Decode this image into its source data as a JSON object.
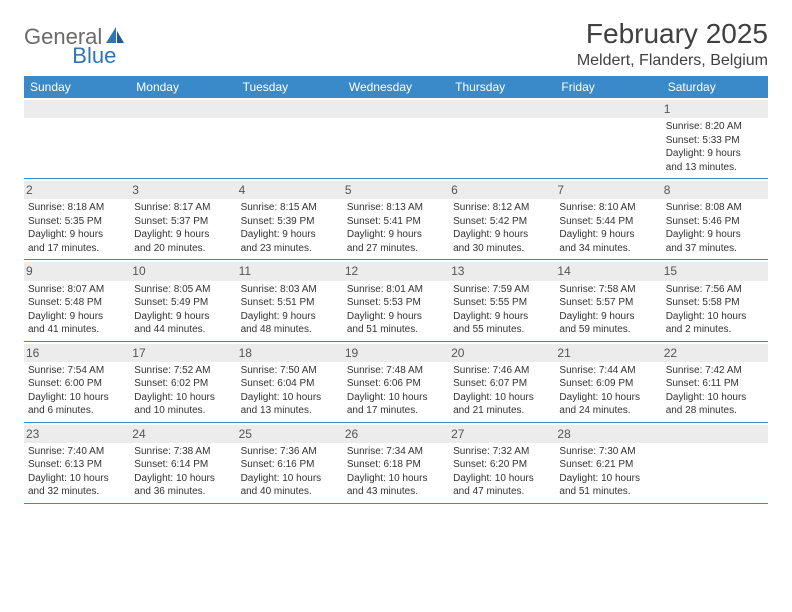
{
  "logo": {
    "text1": "General",
    "text2": "Blue"
  },
  "title": "February 2025",
  "location": "Meldert, Flanders, Belgium",
  "colors": {
    "header_bg": "#3a8ac9",
    "header_text": "#ffffff",
    "daynum_bg": "#ececec",
    "border": "#3a8ac9",
    "logo_gray": "#6b6b6b",
    "logo_blue": "#2e75b6"
  },
  "weekdays": [
    "Sunday",
    "Monday",
    "Tuesday",
    "Wednesday",
    "Thursday",
    "Friday",
    "Saturday"
  ],
  "weeks": [
    [
      {
        "n": "",
        "l": [
          "",
          "",
          "",
          ""
        ]
      },
      {
        "n": "",
        "l": [
          "",
          "",
          "",
          ""
        ]
      },
      {
        "n": "",
        "l": [
          "",
          "",
          "",
          ""
        ]
      },
      {
        "n": "",
        "l": [
          "",
          "",
          "",
          ""
        ]
      },
      {
        "n": "",
        "l": [
          "",
          "",
          "",
          ""
        ]
      },
      {
        "n": "",
        "l": [
          "",
          "",
          "",
          ""
        ]
      },
      {
        "n": "1",
        "l": [
          "Sunrise: 8:20 AM",
          "Sunset: 5:33 PM",
          "Daylight: 9 hours",
          "and 13 minutes."
        ]
      }
    ],
    [
      {
        "n": "2",
        "l": [
          "Sunrise: 8:18 AM",
          "Sunset: 5:35 PM",
          "Daylight: 9 hours",
          "and 17 minutes."
        ]
      },
      {
        "n": "3",
        "l": [
          "Sunrise: 8:17 AM",
          "Sunset: 5:37 PM",
          "Daylight: 9 hours",
          "and 20 minutes."
        ]
      },
      {
        "n": "4",
        "l": [
          "Sunrise: 8:15 AM",
          "Sunset: 5:39 PM",
          "Daylight: 9 hours",
          "and 23 minutes."
        ]
      },
      {
        "n": "5",
        "l": [
          "Sunrise: 8:13 AM",
          "Sunset: 5:41 PM",
          "Daylight: 9 hours",
          "and 27 minutes."
        ]
      },
      {
        "n": "6",
        "l": [
          "Sunrise: 8:12 AM",
          "Sunset: 5:42 PM",
          "Daylight: 9 hours",
          "and 30 minutes."
        ]
      },
      {
        "n": "7",
        "l": [
          "Sunrise: 8:10 AM",
          "Sunset: 5:44 PM",
          "Daylight: 9 hours",
          "and 34 minutes."
        ]
      },
      {
        "n": "8",
        "l": [
          "Sunrise: 8:08 AM",
          "Sunset: 5:46 PM",
          "Daylight: 9 hours",
          "and 37 minutes."
        ]
      }
    ],
    [
      {
        "n": "9",
        "l": [
          "Sunrise: 8:07 AM",
          "Sunset: 5:48 PM",
          "Daylight: 9 hours",
          "and 41 minutes."
        ]
      },
      {
        "n": "10",
        "l": [
          "Sunrise: 8:05 AM",
          "Sunset: 5:49 PM",
          "Daylight: 9 hours",
          "and 44 minutes."
        ]
      },
      {
        "n": "11",
        "l": [
          "Sunrise: 8:03 AM",
          "Sunset: 5:51 PM",
          "Daylight: 9 hours",
          "and 48 minutes."
        ]
      },
      {
        "n": "12",
        "l": [
          "Sunrise: 8:01 AM",
          "Sunset: 5:53 PM",
          "Daylight: 9 hours",
          "and 51 minutes."
        ]
      },
      {
        "n": "13",
        "l": [
          "Sunrise: 7:59 AM",
          "Sunset: 5:55 PM",
          "Daylight: 9 hours",
          "and 55 minutes."
        ]
      },
      {
        "n": "14",
        "l": [
          "Sunrise: 7:58 AM",
          "Sunset: 5:57 PM",
          "Daylight: 9 hours",
          "and 59 minutes."
        ]
      },
      {
        "n": "15",
        "l": [
          "Sunrise: 7:56 AM",
          "Sunset: 5:58 PM",
          "Daylight: 10 hours",
          "and 2 minutes."
        ]
      }
    ],
    [
      {
        "n": "16",
        "l": [
          "Sunrise: 7:54 AM",
          "Sunset: 6:00 PM",
          "Daylight: 10 hours",
          "and 6 minutes."
        ]
      },
      {
        "n": "17",
        "l": [
          "Sunrise: 7:52 AM",
          "Sunset: 6:02 PM",
          "Daylight: 10 hours",
          "and 10 minutes."
        ]
      },
      {
        "n": "18",
        "l": [
          "Sunrise: 7:50 AM",
          "Sunset: 6:04 PM",
          "Daylight: 10 hours",
          "and 13 minutes."
        ]
      },
      {
        "n": "19",
        "l": [
          "Sunrise: 7:48 AM",
          "Sunset: 6:06 PM",
          "Daylight: 10 hours",
          "and 17 minutes."
        ]
      },
      {
        "n": "20",
        "l": [
          "Sunrise: 7:46 AM",
          "Sunset: 6:07 PM",
          "Daylight: 10 hours",
          "and 21 minutes."
        ]
      },
      {
        "n": "21",
        "l": [
          "Sunrise: 7:44 AM",
          "Sunset: 6:09 PM",
          "Daylight: 10 hours",
          "and 24 minutes."
        ]
      },
      {
        "n": "22",
        "l": [
          "Sunrise: 7:42 AM",
          "Sunset: 6:11 PM",
          "Daylight: 10 hours",
          "and 28 minutes."
        ]
      }
    ],
    [
      {
        "n": "23",
        "l": [
          "Sunrise: 7:40 AM",
          "Sunset: 6:13 PM",
          "Daylight: 10 hours",
          "and 32 minutes."
        ]
      },
      {
        "n": "24",
        "l": [
          "Sunrise: 7:38 AM",
          "Sunset: 6:14 PM",
          "Daylight: 10 hours",
          "and 36 minutes."
        ]
      },
      {
        "n": "25",
        "l": [
          "Sunrise: 7:36 AM",
          "Sunset: 6:16 PM",
          "Daylight: 10 hours",
          "and 40 minutes."
        ]
      },
      {
        "n": "26",
        "l": [
          "Sunrise: 7:34 AM",
          "Sunset: 6:18 PM",
          "Daylight: 10 hours",
          "and 43 minutes."
        ]
      },
      {
        "n": "27",
        "l": [
          "Sunrise: 7:32 AM",
          "Sunset: 6:20 PM",
          "Daylight: 10 hours",
          "and 47 minutes."
        ]
      },
      {
        "n": "28",
        "l": [
          "Sunrise: 7:30 AM",
          "Sunset: 6:21 PM",
          "Daylight: 10 hours",
          "and 51 minutes."
        ]
      },
      {
        "n": "",
        "l": [
          "",
          "",
          "",
          ""
        ]
      }
    ]
  ]
}
